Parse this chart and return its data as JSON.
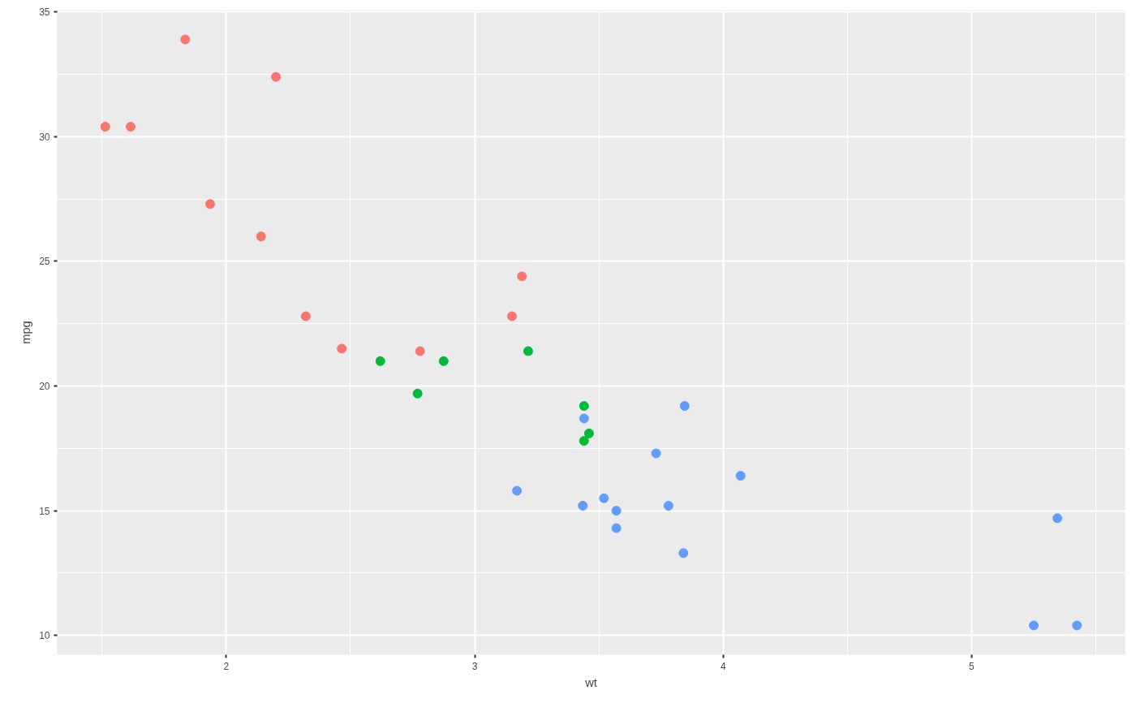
{
  "chart_data": {
    "type": "scatter",
    "xlabel": "wt",
    "ylabel": "mpg",
    "xlim": [
      1.31948,
      5.61753
    ],
    "ylim": [
      9.225,
      35.075
    ],
    "xticks": [
      2,
      3,
      4,
      5
    ],
    "yticks": [
      10,
      15,
      20,
      25,
      30,
      35
    ],
    "grid": true,
    "marker": "circle",
    "series": [
      {
        "color": "#f8766d",
        "x": [
          2.32,
          3.19,
          3.15,
          2.2,
          1.615,
          1.835,
          2.465,
          1.935,
          2.14,
          1.513,
          2.78
        ],
        "values": [
          22.8,
          24.4,
          22.8,
          32.4,
          30.4,
          33.9,
          21.5,
          27.3,
          26.0,
          30.4,
          21.4
        ]
      },
      {
        "color": "#00ba38",
        "x": [
          2.62,
          2.875,
          3.215,
          3.46,
          3.44,
          3.44,
          2.77
        ],
        "values": [
          21.0,
          21.0,
          21.4,
          18.1,
          19.2,
          17.8,
          19.7
        ]
      },
      {
        "color": "#619cff",
        "x": [
          3.44,
          3.57,
          4.07,
          3.73,
          3.78,
          5.25,
          5.424,
          5.345,
          3.52,
          3.435,
          3.84,
          3.845,
          3.17,
          3.57
        ],
        "values": [
          18.7,
          14.3,
          16.4,
          17.3,
          15.2,
          10.4,
          10.4,
          14.7,
          15.5,
          15.2,
          13.3,
          19.2,
          15.8,
          15.0
        ]
      }
    ]
  }
}
